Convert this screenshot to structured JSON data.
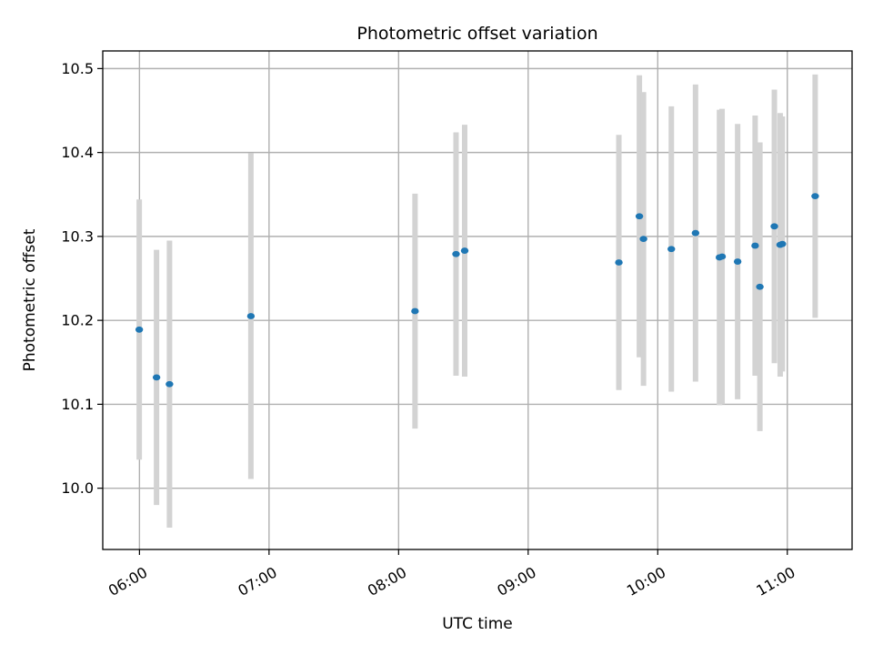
{
  "chart_data": {
    "type": "scatter",
    "title": "Photometric offset variation",
    "xlabel": "UTC time",
    "ylabel": "Photometric offset",
    "x_ticks": [
      "06:00",
      "07:00",
      "08:00",
      "09:00",
      "10:00",
      "11:00"
    ],
    "y_ticks": [
      "10.0",
      "10.1",
      "10.2",
      "10.3",
      "10.4",
      "10.5"
    ],
    "xlim": [
      "05:43",
      "11:30"
    ],
    "ylim": [
      9.927,
      10.521
    ],
    "grid": true,
    "colors": {
      "marker": "#1f77b4",
      "errorbar": "#d3d3d3",
      "grid": "#b0b0b0"
    },
    "points": [
      {
        "time": "05:59:54",
        "y": 10.189,
        "err": 0.155
      },
      {
        "time": "06:07:54",
        "y": 10.132,
        "err": 0.152
      },
      {
        "time": "06:13:54",
        "y": 10.124,
        "err": 0.171
      },
      {
        "time": "06:51:36",
        "y": 10.205,
        "err": 0.194
      },
      {
        "time": "08:07:36",
        "y": 10.211,
        "err": 0.14
      },
      {
        "time": "08:26:36",
        "y": 10.279,
        "err": 0.145
      },
      {
        "time": "08:30:36",
        "y": 10.283,
        "err": 0.15
      },
      {
        "time": "09:42:00",
        "y": 10.269,
        "err": 0.152
      },
      {
        "time": "09:51:30",
        "y": 10.324,
        "err": 0.168
      },
      {
        "time": "09:53:24",
        "y": 10.297,
        "err": 0.175
      },
      {
        "time": "10:06:18",
        "y": 10.285,
        "err": 0.17
      },
      {
        "time": "10:17:30",
        "y": 10.304,
        "err": 0.177
      },
      {
        "time": "10:28:36",
        "y": 10.275,
        "err": 0.176
      },
      {
        "time": "10:29:48",
        "y": 10.276,
        "err": 0.176
      },
      {
        "time": "10:37:00",
        "y": 10.27,
        "err": 0.164
      },
      {
        "time": "10:45:06",
        "y": 10.289,
        "err": 0.155
      },
      {
        "time": "10:47:18",
        "y": 10.24,
        "err": 0.172
      },
      {
        "time": "10:54:00",
        "y": 10.312,
        "err": 0.163
      },
      {
        "time": "10:56:42",
        "y": 10.29,
        "err": 0.157
      },
      {
        "time": "10:57:42",
        "y": 10.291,
        "err": 0.152
      },
      {
        "time": "11:12:54",
        "y": 10.348,
        "err": 0.145
      }
    ]
  }
}
